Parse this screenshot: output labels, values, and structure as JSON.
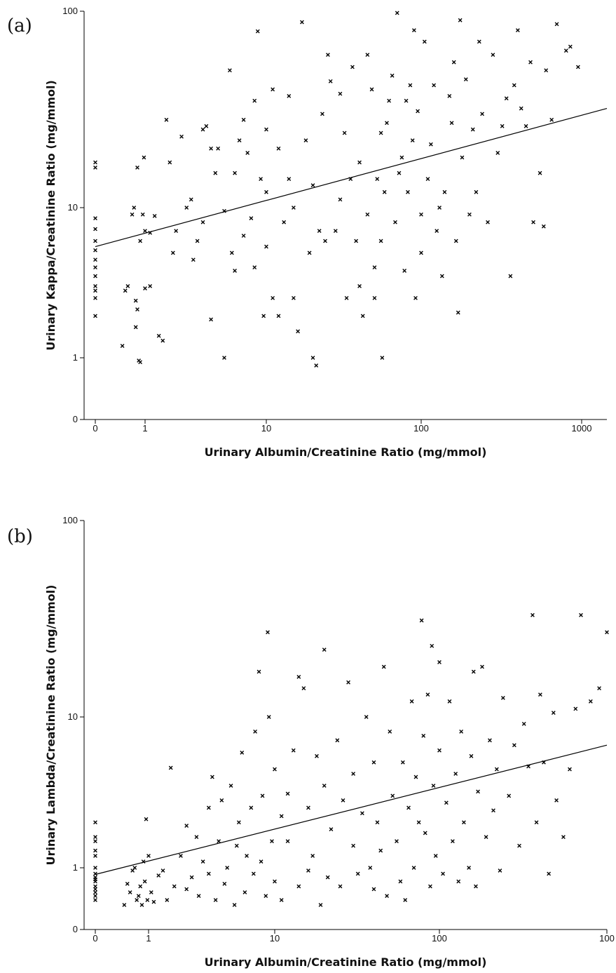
{
  "chart_data": [
    {
      "type": "scatter",
      "panel_label": "(a)",
      "xlabel": "Urinary Albumin/Creatinine Ratio (mg/mmol)",
      "ylabel": "Urinary Kappa/Creatinine Ratio (mg/mmol)",
      "x_scale": "log (0 shown at origin)",
      "y_scale": "log (0 shown at origin)",
      "x_ticks": [
        "0",
        "1",
        "10",
        "100",
        "1000"
      ],
      "y_ticks": [
        "0",
        "1",
        "10",
        "100"
      ],
      "xlim": [
        0,
        1400
      ],
      "ylim": [
        0,
        100
      ],
      "grid": false,
      "legend": "none",
      "trend_line": {
        "x": [
          0,
          1400
        ],
        "y": [
          5.5,
          32
        ]
      },
      "points": [
        [
          0,
          4.5
        ],
        [
          0,
          5.2
        ],
        [
          0,
          6
        ],
        [
          0,
          7.2
        ],
        [
          0,
          8.5
        ],
        [
          0,
          16
        ],
        [
          0,
          17
        ],
        [
          0,
          3
        ],
        [
          0,
          2.5
        ],
        [
          0,
          3.5
        ],
        [
          0,
          4
        ],
        [
          0,
          1.9
        ],
        [
          0,
          2.8
        ],
        [
          0.35,
          1.2
        ],
        [
          0.4,
          2.8
        ],
        [
          0.45,
          3
        ],
        [
          0.55,
          9
        ],
        [
          0.6,
          10
        ],
        [
          0.65,
          1.6
        ],
        [
          0.65,
          2.4
        ],
        [
          0.7,
          2.1
        ],
        [
          0.7,
          16
        ],
        [
          0.75,
          0.9
        ],
        [
          0.8,
          0.85
        ],
        [
          0.8,
          6
        ],
        [
          0.9,
          9
        ],
        [
          0.95,
          18
        ],
        [
          1,
          2.9
        ],
        [
          1.1,
          3
        ],
        [
          1,
          7
        ],
        [
          1.1,
          6.8
        ],
        [
          1.2,
          8.8
        ],
        [
          1.3,
          1.4
        ],
        [
          1.4,
          1.3
        ],
        [
          1.5,
          28
        ],
        [
          1.6,
          17
        ],
        [
          1.7,
          5
        ],
        [
          1.8,
          7
        ],
        [
          2,
          23
        ],
        [
          2.2,
          10
        ],
        [
          2.4,
          11
        ],
        [
          2.5,
          4.5
        ],
        [
          2.7,
          6
        ],
        [
          3,
          8
        ],
        [
          3,
          25
        ],
        [
          3.2,
          26
        ],
        [
          3.5,
          20
        ],
        [
          3.5,
          1.8
        ],
        [
          3.8,
          15
        ],
        [
          4,
          20
        ],
        [
          4.5,
          9.5
        ],
        [
          4.5,
          1
        ],
        [
          5,
          50
        ],
        [
          5.2,
          5
        ],
        [
          5.5,
          15
        ],
        [
          5.5,
          3.8
        ],
        [
          6,
          22
        ],
        [
          6.5,
          28
        ],
        [
          6.5,
          6.5
        ],
        [
          7,
          19
        ],
        [
          7.5,
          8.5
        ],
        [
          8,
          4
        ],
        [
          8,
          35
        ],
        [
          8.5,
          79
        ],
        [
          9,
          14
        ],
        [
          9.5,
          1.9
        ],
        [
          10,
          25
        ],
        [
          10,
          12
        ],
        [
          10,
          5.5
        ],
        [
          11,
          40
        ],
        [
          11,
          2.5
        ],
        [
          12,
          20
        ],
        [
          12,
          1.9
        ],
        [
          13,
          8
        ],
        [
          14,
          14
        ],
        [
          14,
          37
        ],
        [
          15,
          10
        ],
        [
          15,
          2.5
        ],
        [
          16,
          1.5
        ],
        [
          17,
          88
        ],
        [
          18,
          22
        ],
        [
          19,
          5
        ],
        [
          20,
          1
        ],
        [
          20,
          13
        ],
        [
          21,
          0.75
        ],
        [
          22,
          7
        ],
        [
          23,
          30
        ],
        [
          24,
          6
        ],
        [
          25,
          60
        ],
        [
          26,
          44
        ],
        [
          28,
          7
        ],
        [
          30,
          38
        ],
        [
          30,
          11
        ],
        [
          32,
          24
        ],
        [
          33,
          2.5
        ],
        [
          35,
          14
        ],
        [
          36,
          52
        ],
        [
          38,
          6
        ],
        [
          40,
          3
        ],
        [
          40,
          17
        ],
        [
          42,
          1.9
        ],
        [
          45,
          9
        ],
        [
          45,
          60
        ],
        [
          48,
          40
        ],
        [
          50,
          4
        ],
        [
          50,
          2.5
        ],
        [
          52,
          14
        ],
        [
          55,
          6
        ],
        [
          55,
          24
        ],
        [
          56,
          1
        ],
        [
          58,
          12
        ],
        [
          60,
          27
        ],
        [
          62,
          35
        ],
        [
          65,
          47
        ],
        [
          68,
          8
        ],
        [
          70,
          98
        ],
        [
          72,
          15
        ],
        [
          75,
          18
        ],
        [
          78,
          3.8
        ],
        [
          80,
          35
        ],
        [
          82,
          12
        ],
        [
          85,
          42
        ],
        [
          88,
          22
        ],
        [
          90,
          80
        ],
        [
          92,
          2.5
        ],
        [
          95,
          31
        ],
        [
          100,
          9
        ],
        [
          100,
          5
        ],
        [
          105,
          70
        ],
        [
          110,
          14
        ],
        [
          115,
          21
        ],
        [
          120,
          42
        ],
        [
          125,
          7
        ],
        [
          130,
          10
        ],
        [
          135,
          3.5
        ],
        [
          140,
          12
        ],
        [
          150,
          37
        ],
        [
          155,
          27
        ],
        [
          160,
          55
        ],
        [
          165,
          6
        ],
        [
          170,
          2
        ],
        [
          175,
          90
        ],
        [
          180,
          18
        ],
        [
          190,
          45
        ],
        [
          200,
          9
        ],
        [
          210,
          25
        ],
        [
          220,
          12
        ],
        [
          230,
          70
        ],
        [
          240,
          30
        ],
        [
          260,
          8
        ],
        [
          280,
          60
        ],
        [
          300,
          19
        ],
        [
          320,
          26
        ],
        [
          340,
          36
        ],
        [
          360,
          3.5
        ],
        [
          380,
          42
        ],
        [
          400,
          80
        ],
        [
          420,
          32
        ],
        [
          450,
          26
        ],
        [
          480,
          55
        ],
        [
          500,
          8
        ],
        [
          550,
          15
        ],
        [
          580,
          7.5
        ],
        [
          600,
          50
        ],
        [
          650,
          28
        ],
        [
          700,
          86
        ],
        [
          800,
          63
        ],
        [
          850,
          66
        ],
        [
          950,
          52
        ]
      ]
    },
    {
      "type": "scatter",
      "panel_label": "(b)",
      "xlabel": "Urinary Albumin/Creatinine Ratio (mg/mmol)",
      "ylabel": "Urinary Lambda/Creatinine Ratio (mg/mmol)",
      "x_scale": "log (0 shown at origin)",
      "y_scale": "log (0 shown at origin)",
      "x_ticks": [
        "0",
        "1",
        "10",
        "100",
        "100"
      ],
      "y_ticks": [
        "0",
        "1",
        "10",
        "100"
      ],
      "xlim": [
        0,
        1000
      ],
      "ylim": [
        0,
        100
      ],
      "grid": false,
      "legend": "none",
      "trend_line": {
        "x": [
          0,
          1000
        ],
        "y": [
          0.78,
          6.5
        ]
      },
      "points": [
        [
          0,
          0.3
        ],
        [
          0,
          0.35
        ],
        [
          0,
          0.4
        ],
        [
          0,
          0.45
        ],
        [
          0,
          0.5
        ],
        [
          0,
          0.6
        ],
        [
          0,
          0.65
        ],
        [
          0,
          0.7
        ],
        [
          0,
          0.8
        ],
        [
          0,
          1
        ],
        [
          0,
          1.2
        ],
        [
          0,
          1.6
        ],
        [
          0,
          2
        ],
        [
          0,
          1.3
        ],
        [
          0,
          1.5
        ],
        [
          0.35,
          0.25
        ],
        [
          0.4,
          0.55
        ],
        [
          0.45,
          0.4
        ],
        [
          0.5,
          0.9
        ],
        [
          0.55,
          1
        ],
        [
          0.6,
          0.3
        ],
        [
          0.65,
          0.35
        ],
        [
          0.7,
          0.5
        ],
        [
          0.75,
          0.25
        ],
        [
          0.8,
          1.1
        ],
        [
          0.85,
          0.6
        ],
        [
          0.9,
          2.1
        ],
        [
          0.95,
          0.3
        ],
        [
          1,
          1.2
        ],
        [
          1.05,
          0.4
        ],
        [
          1.1,
          0.28
        ],
        [
          1.2,
          0.75
        ],
        [
          1.3,
          0.9
        ],
        [
          1.4,
          0.3
        ],
        [
          1.5,
          4.6
        ],
        [
          1.6,
          0.5
        ],
        [
          1.8,
          1.2
        ],
        [
          2,
          0.45
        ],
        [
          2,
          1.9
        ],
        [
          2.2,
          0.7
        ],
        [
          2.4,
          1.6
        ],
        [
          2.5,
          0.35
        ],
        [
          2.7,
          1.1
        ],
        [
          3,
          0.8
        ],
        [
          3,
          2.5
        ],
        [
          3.2,
          4
        ],
        [
          3.4,
          0.3
        ],
        [
          3.6,
          1.5
        ],
        [
          3.8,
          2.8
        ],
        [
          4,
          0.55
        ],
        [
          4.2,
          1
        ],
        [
          4.5,
          3.5
        ],
        [
          4.8,
          0.25
        ],
        [
          5,
          1.4
        ],
        [
          5.2,
          2
        ],
        [
          5.5,
          5.8
        ],
        [
          5.8,
          0.4
        ],
        [
          6,
          1.2
        ],
        [
          6.5,
          2.5
        ],
        [
          6.8,
          0.8
        ],
        [
          7,
          8
        ],
        [
          7.5,
          17
        ],
        [
          7.8,
          1.1
        ],
        [
          8,
          3
        ],
        [
          8.5,
          0.35
        ],
        [
          8.8,
          27
        ],
        [
          9,
          10
        ],
        [
          9.5,
          1.5
        ],
        [
          10,
          0.6
        ],
        [
          10,
          4.5
        ],
        [
          11,
          2.2
        ],
        [
          11,
          0.3
        ],
        [
          12,
          3.1
        ],
        [
          12,
          1.5
        ],
        [
          13,
          6
        ],
        [
          14,
          16
        ],
        [
          14,
          0.5
        ],
        [
          15,
          14
        ],
        [
          16,
          2.5
        ],
        [
          16,
          0.9
        ],
        [
          17,
          1.2
        ],
        [
          18,
          5.5
        ],
        [
          19,
          0.25
        ],
        [
          20,
          22
        ],
        [
          20,
          3.5
        ],
        [
          21,
          0.7
        ],
        [
          22,
          1.8
        ],
        [
          24,
          7
        ],
        [
          25,
          0.5
        ],
        [
          26,
          2.8
        ],
        [
          28,
          15
        ],
        [
          30,
          1.4
        ],
        [
          30,
          4.2
        ],
        [
          32,
          0.8
        ],
        [
          34,
          2.3
        ],
        [
          36,
          10
        ],
        [
          38,
          1
        ],
        [
          40,
          0.45
        ],
        [
          40,
          5
        ],
        [
          42,
          2
        ],
        [
          44,
          1.3
        ],
        [
          46,
          18
        ],
        [
          48,
          0.35
        ],
        [
          50,
          8
        ],
        [
          52,
          3
        ],
        [
          55,
          1.5
        ],
        [
          58,
          0.6
        ],
        [
          60,
          5
        ],
        [
          62,
          0.3
        ],
        [
          65,
          2.5
        ],
        [
          68,
          12
        ],
        [
          70,
          1
        ],
        [
          72,
          4
        ],
        [
          75,
          2
        ],
        [
          78,
          31
        ],
        [
          80,
          7.5
        ],
        [
          82,
          1.7
        ],
        [
          85,
          13
        ],
        [
          88,
          0.5
        ],
        [
          90,
          23
        ],
        [
          92,
          3.5
        ],
        [
          95,
          1.2
        ],
        [
          100,
          19
        ],
        [
          100,
          6
        ],
        [
          105,
          0.8
        ],
        [
          110,
          2.7
        ],
        [
          115,
          12
        ],
        [
          120,
          1.5
        ],
        [
          125,
          4.2
        ],
        [
          130,
          0.6
        ],
        [
          135,
          8
        ],
        [
          140,
          2
        ],
        [
          150,
          1
        ],
        [
          155,
          5.5
        ],
        [
          160,
          17
        ],
        [
          165,
          0.5
        ],
        [
          170,
          3.2
        ],
        [
          180,
          18
        ],
        [
          190,
          1.6
        ],
        [
          200,
          7
        ],
        [
          210,
          2.4
        ],
        [
          220,
          4.5
        ],
        [
          230,
          0.9
        ],
        [
          240,
          12.5
        ],
        [
          260,
          3
        ],
        [
          280,
          6.5
        ],
        [
          300,
          1.4
        ],
        [
          320,
          9
        ],
        [
          340,
          4.7
        ],
        [
          360,
          33
        ],
        [
          380,
          2
        ],
        [
          400,
          13
        ],
        [
          420,
          5
        ],
        [
          450,
          0.8
        ],
        [
          480,
          10.5
        ],
        [
          500,
          2.8
        ],
        [
          550,
          1.6
        ],
        [
          600,
          4.5
        ],
        [
          650,
          11
        ],
        [
          700,
          33
        ],
        [
          800,
          12
        ],
        [
          900,
          14
        ],
        [
          1000,
          27
        ]
      ]
    }
  ]
}
